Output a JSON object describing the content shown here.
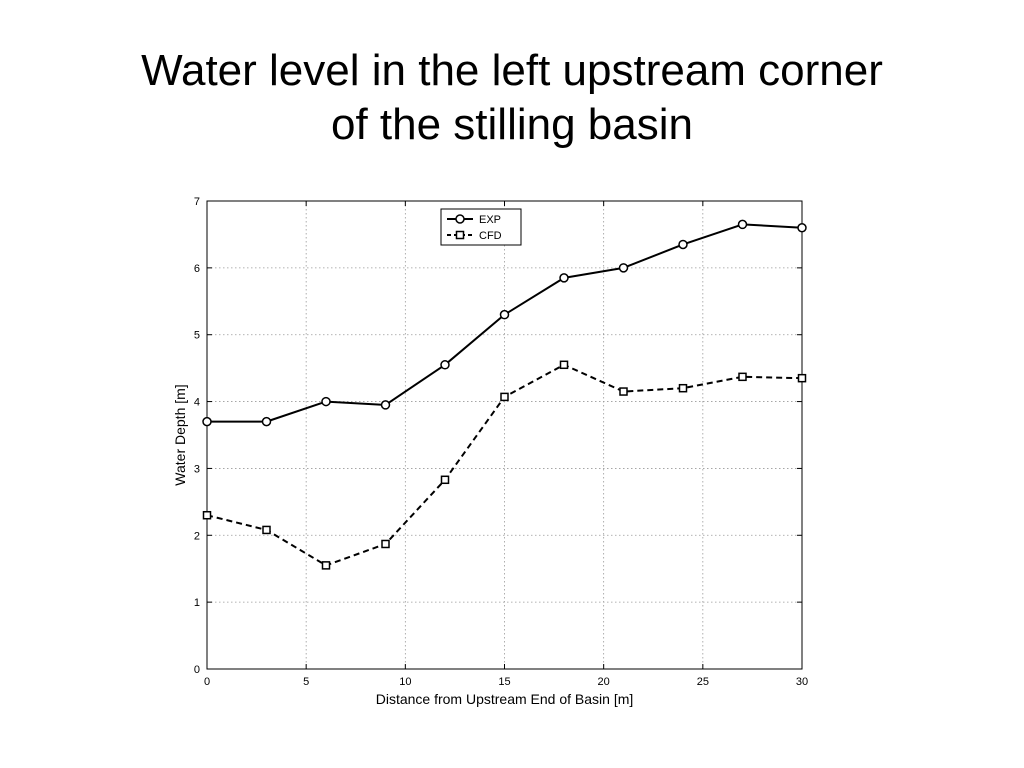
{
  "slide": {
    "title_line1": "Water level in the left upstream corner",
    "title_line2": "of the stilling basin"
  },
  "chart_data": {
    "type": "line",
    "xlabel": "Distance from Upstream End of Basin [m]",
    "ylabel": "Water Depth [m]",
    "xlim": [
      0,
      30
    ],
    "ylim": [
      0,
      7
    ],
    "xticks": [
      0,
      5,
      10,
      15,
      20,
      25,
      30
    ],
    "yticks": [
      0,
      1,
      2,
      3,
      4,
      5,
      6,
      7
    ],
    "grid": true,
    "legend_position": "top-center",
    "x": [
      0,
      3,
      6,
      9,
      12,
      15,
      18,
      21,
      24,
      27,
      30
    ],
    "series": [
      {
        "name": "EXP",
        "line_style": "solid",
        "marker": "circle",
        "color": "#000000",
        "values": [
          3.7,
          3.7,
          4.0,
          3.95,
          4.55,
          5.3,
          5.85,
          6.0,
          6.35,
          6.65,
          6.6
        ]
      },
      {
        "name": "CFD",
        "line_style": "dashed",
        "marker": "square",
        "color": "#000000",
        "values": [
          2.3,
          2.08,
          1.55,
          1.87,
          2.83,
          4.07,
          4.55,
          4.15,
          4.2,
          4.37,
          4.35
        ]
      }
    ]
  }
}
